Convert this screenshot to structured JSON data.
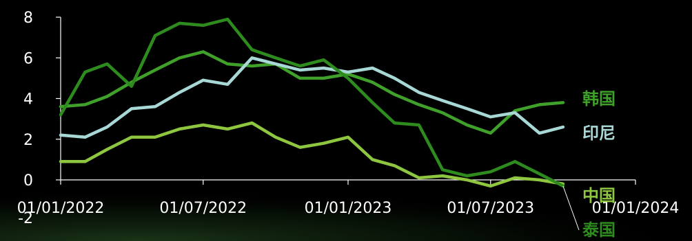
{
  "chart_data": {
    "type": "line",
    "title": "",
    "xlabel": "",
    "ylabel": "",
    "ylim": [
      -2,
      8
    ],
    "yticks": [
      -2,
      0,
      2,
      4,
      6,
      8
    ],
    "xlim": [
      "2022-01-01",
      "2024-01-01"
    ],
    "xticks": [
      {
        "date": "2022-01-01",
        "label": "01/01/2022"
      },
      {
        "date": "2022-07-01",
        "label": "01/07/2022"
      },
      {
        "date": "2023-01-01",
        "label": "01/01/2023"
      },
      {
        "date": "2023-07-01",
        "label": "01/07/2023"
      },
      {
        "date": "2024-01-01",
        "label": "01/01/2024"
      }
    ],
    "x": [
      "2022-01-01",
      "2022-02-01",
      "2022-03-01",
      "2022-04-01",
      "2022-05-01",
      "2022-06-01",
      "2022-07-01",
      "2022-08-01",
      "2022-09-01",
      "2022-10-01",
      "2022-11-01",
      "2022-12-01",
      "2023-01-01",
      "2023-02-01",
      "2023-03-01",
      "2023-04-01",
      "2023-05-01",
      "2023-06-01",
      "2023-07-01",
      "2023-08-01",
      "2023-09-01",
      "2023-10-01"
    ],
    "grid": false,
    "legend": "direct labels at right",
    "series": [
      {
        "name": "韩国",
        "color": "#3fa02a",
        "values": [
          3.6,
          3.7,
          4.1,
          4.8,
          5.4,
          6.0,
          6.3,
          5.7,
          5.6,
          5.7,
          5.0,
          5.0,
          5.2,
          4.8,
          4.2,
          3.7,
          3.3,
          2.7,
          2.3,
          3.4,
          3.7,
          3.8
        ]
      },
      {
        "name": "印尼",
        "color": "#a8d8d6",
        "values": [
          2.2,
          2.1,
          2.6,
          3.5,
          3.6,
          4.3,
          4.9,
          4.7,
          6.0,
          5.7,
          5.4,
          5.5,
          5.3,
          5.5,
          5.0,
          4.3,
          3.9,
          3.5,
          3.1,
          3.3,
          2.3,
          2.6
        ]
      },
      {
        "name": "中国",
        "color": "#8ec63f",
        "values": [
          0.9,
          0.9,
          1.5,
          2.1,
          2.1,
          2.5,
          2.7,
          2.5,
          2.8,
          2.1,
          1.6,
          1.8,
          2.1,
          1.0,
          0.7,
          0.1,
          0.2,
          0.0,
          -0.3,
          0.1,
          0.0,
          -0.2
        ]
      },
      {
        "name": "泰国",
        "color": "#2e8c1e",
        "values": [
          3.2,
          5.3,
          5.7,
          4.6,
          7.1,
          7.7,
          7.6,
          7.9,
          6.4,
          6.0,
          5.6,
          5.9,
          5.0,
          3.8,
          2.8,
          2.7,
          0.5,
          0.2,
          0.4,
          0.9,
          0.3,
          -0.3
        ]
      }
    ]
  }
}
